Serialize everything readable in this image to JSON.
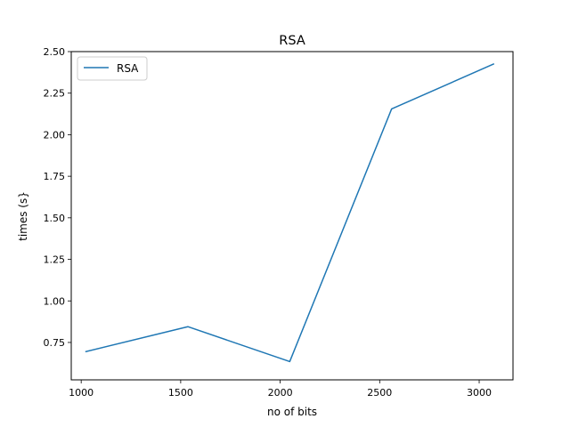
{
  "chart_data": {
    "type": "line",
    "title": "RSA",
    "xlabel": "no of bits",
    "ylabel": "times (s}",
    "xlim": [
      950,
      3170
    ],
    "ylim": [
      0.525,
      2.5
    ],
    "xticks": [
      1000,
      1500,
      2000,
      2500,
      3000
    ],
    "xtick_labels": [
      "1000",
      "1500",
      "2000",
      "2500",
      "3000"
    ],
    "yticks": [
      0.75,
      1.0,
      1.25,
      1.5,
      1.75,
      2.0,
      2.25,
      2.5
    ],
    "ytick_labels": [
      "0.75",
      "1.00",
      "1.25",
      "1.50",
      "1.75",
      "2.00",
      "2.25",
      "2.50"
    ],
    "grid": false,
    "legend_position": "top-left",
    "series": [
      {
        "name": "RSA",
        "color": "#1f77b4",
        "x": [
          1024,
          1536,
          2048,
          2560,
          3072
        ],
        "y": [
          0.695,
          0.845,
          0.635,
          2.155,
          2.425
        ]
      }
    ]
  }
}
